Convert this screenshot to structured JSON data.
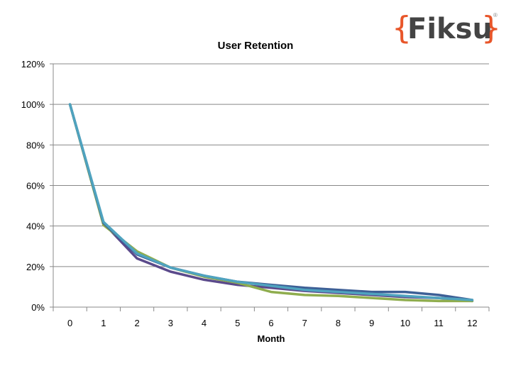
{
  "logo": {
    "brand": "Fiksu",
    "left_brace": "{",
    "right_brace": "}",
    "mark": "®"
  },
  "colors": {
    "brand_orange": "#e8562a",
    "brand_gray": "#444444",
    "gridline": "#888888"
  },
  "chart_data": {
    "type": "line",
    "title": "User Retention",
    "xlabel": "Month",
    "ylabel": "",
    "x": [
      0,
      1,
      2,
      3,
      4,
      5,
      6,
      7,
      8,
      9,
      10,
      11,
      12
    ],
    "ylim": [
      0,
      120
    ],
    "yticks": [
      0,
      20,
      40,
      60,
      80,
      100,
      120
    ],
    "ytick_labels": [
      "0%",
      "20%",
      "40%",
      "60%",
      "80%",
      "100%",
      "120%"
    ],
    "grid": true,
    "legend": "none",
    "series": [
      {
        "color": "#5b4a8b",
        "values": [
          100,
          41.5,
          24,
          17.5,
          13.5,
          11,
          9.5,
          8,
          7,
          6,
          5,
          4.5,
          3
        ]
      },
      {
        "color": "#8fad4e",
        "values": [
          100,
          40.5,
          27.5,
          19.5,
          15,
          12,
          7.5,
          6,
          5.5,
          4.5,
          3.5,
          3,
          3
        ]
      },
      {
        "color": "#3d5f96",
        "values": [
          100,
          41.5,
          26,
          19.5,
          15.5,
          12.5,
          11,
          9.5,
          8.5,
          7.5,
          7.5,
          6,
          3.5
        ]
      },
      {
        "color": "#4fa3bf",
        "values": [
          100,
          42,
          26.5,
          19.5,
          15.5,
          12.5,
          10.5,
          8.5,
          7.5,
          6.5,
          5.5,
          4.5,
          3.5
        ]
      }
    ]
  }
}
